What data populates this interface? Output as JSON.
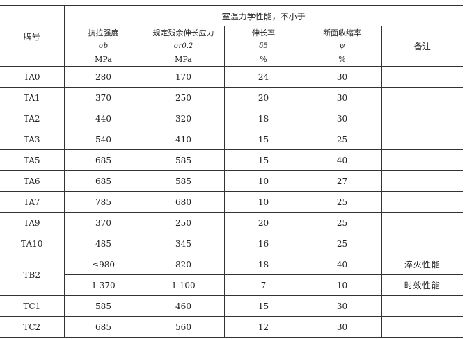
{
  "header": {
    "grade": "牌号",
    "group": "室温力学性能，不小于",
    "columns": [
      {
        "name": "抗拉强度",
        "symbol": "σb",
        "unit": "MPa"
      },
      {
        "name": "规定残余伸长应力",
        "symbol": "σr0.2",
        "unit": "MPa"
      },
      {
        "name": "伸长率",
        "symbol": "δ5",
        "unit": "%"
      },
      {
        "name": "断面收缩率",
        "symbol": "ψ",
        "unit": "%"
      }
    ],
    "remark": "备注"
  },
  "rows": [
    {
      "grade": "TA0",
      "v": [
        "280",
        "170",
        "24",
        "30"
      ],
      "remark": ""
    },
    {
      "grade": "TA1",
      "v": [
        "370",
        "250",
        "20",
        "30"
      ],
      "remark": ""
    },
    {
      "grade": "TA2",
      "v": [
        "440",
        "320",
        "18",
        "30"
      ],
      "remark": ""
    },
    {
      "grade": "TA3",
      "v": [
        "540",
        "410",
        "15",
        "25"
      ],
      "remark": ""
    },
    {
      "grade": "TA5",
      "v": [
        "685",
        "585",
        "15",
        "40"
      ],
      "remark": ""
    },
    {
      "grade": "TA6",
      "v": [
        "685",
        "585",
        "10",
        "27"
      ],
      "remark": ""
    },
    {
      "grade": "TA7",
      "v": [
        "785",
        "680",
        "10",
        "25"
      ],
      "remark": ""
    },
    {
      "grade": "TA9",
      "v": [
        "370",
        "250",
        "20",
        "25"
      ],
      "remark": ""
    },
    {
      "grade": "TA10",
      "v": [
        "485",
        "345",
        "16",
        "25"
      ],
      "remark": ""
    }
  ],
  "tb2": {
    "grade": "TB2",
    "rows": [
      {
        "v": [
          "≤980",
          "820",
          "18",
          "40"
        ],
        "remark": "淬火性能"
      },
      {
        "v": [
          "1 370",
          "1 100",
          "7",
          "10"
        ],
        "remark": "时效性能"
      }
    ]
  },
  "tail": [
    {
      "grade": "TC1",
      "v": [
        "585",
        "460",
        "15",
        "30"
      ],
      "remark": ""
    },
    {
      "grade": "TC2",
      "v": [
        "685",
        "560",
        "12",
        "30"
      ],
      "remark": ""
    }
  ]
}
